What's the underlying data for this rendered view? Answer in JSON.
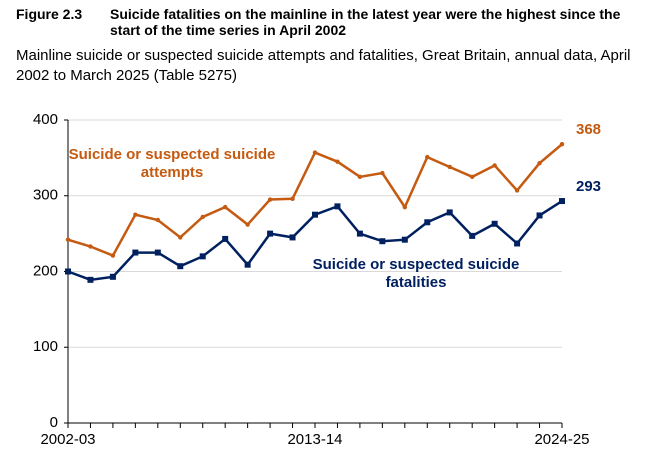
{
  "chart_data": {
    "type": "line",
    "figure_label": "Figure 2.3",
    "title": "Suicide fatalities on the mainline in the latest year were the highest since the start of the time series in April 2002",
    "subtitle": "Mainline suicide or suspected suicide attempts and fatalities, Great Britain, annual data, April 2002 to March 2025 (Table 5275)",
    "categories": [
      "2002-03",
      null,
      null,
      null,
      null,
      null,
      null,
      null,
      null,
      null,
      null,
      "2013-14",
      null,
      null,
      null,
      null,
      null,
      null,
      null,
      null,
      null,
      null,
      "2024-25"
    ],
    "series": [
      {
        "name": "Suicide or suspected suicide attempts",
        "color": "#c55a11",
        "marker": "circle",
        "values": [
          242,
          233,
          221,
          275,
          268,
          245,
          272,
          285,
          262,
          295,
          296,
          357,
          345,
          325,
          330,
          285,
          351,
          338,
          325,
          340,
          307,
          343,
          368
        ]
      },
      {
        "name": "Suicide or suspected suicide fatalities",
        "color": "#002060",
        "marker": "square",
        "values": [
          200,
          189,
          193,
          225,
          225,
          207,
          220,
          243,
          209,
          250,
          245,
          275,
          286,
          250,
          240,
          242,
          265,
          278,
          247,
          263,
          237,
          274,
          293
        ]
      }
    ],
    "ylim": [
      0,
      400
    ],
    "yticks": [
      0,
      100,
      200,
      300,
      400
    ],
    "grid": true
  }
}
